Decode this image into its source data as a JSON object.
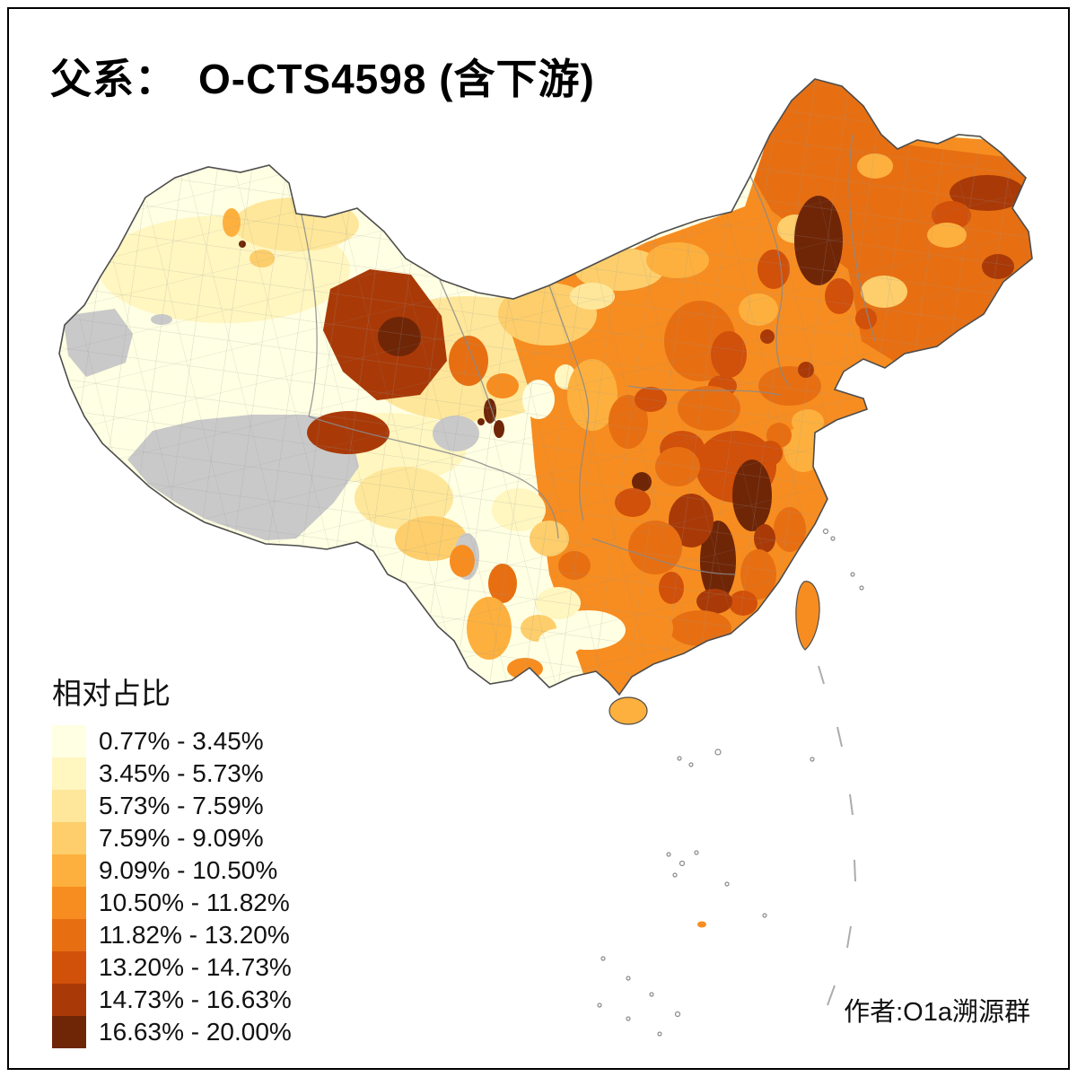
{
  "title": "父系：　O-CTS4598 (含下游)",
  "legend": {
    "title": "相对占比",
    "classes": [
      {
        "label": "0.77% - 3.45%",
        "color": "#FFFFE3"
      },
      {
        "label": "3.45% - 5.73%",
        "color": "#FFF6C0"
      },
      {
        "label": "5.73% - 7.59%",
        "color": "#FEE79A"
      },
      {
        "label": "7.59% - 9.09%",
        "color": "#FDCE6B"
      },
      {
        "label": "9.09% - 10.50%",
        "color": "#FDB03E"
      },
      {
        "label": "10.50% - 11.82%",
        "color": "#F78D20"
      },
      {
        "label": "11.82% - 13.20%",
        "color": "#E76F12"
      },
      {
        "label": "13.20% - 14.73%",
        "color": "#D1500A"
      },
      {
        "label": "14.73% - 16.63%",
        "color": "#A93A08"
      },
      {
        "label": "16.63% - 20.00%",
        "color": "#6F2607"
      }
    ]
  },
  "author": "作者:O1a溯源群",
  "map": {
    "subject": "China prefecture-level choropleth of O-CTS4598 paternal lineage relative frequency",
    "no_data_color": "#C9C9C9",
    "outline_color": "#4D4D4D",
    "boundary_color": "#8A8A8A"
  }
}
